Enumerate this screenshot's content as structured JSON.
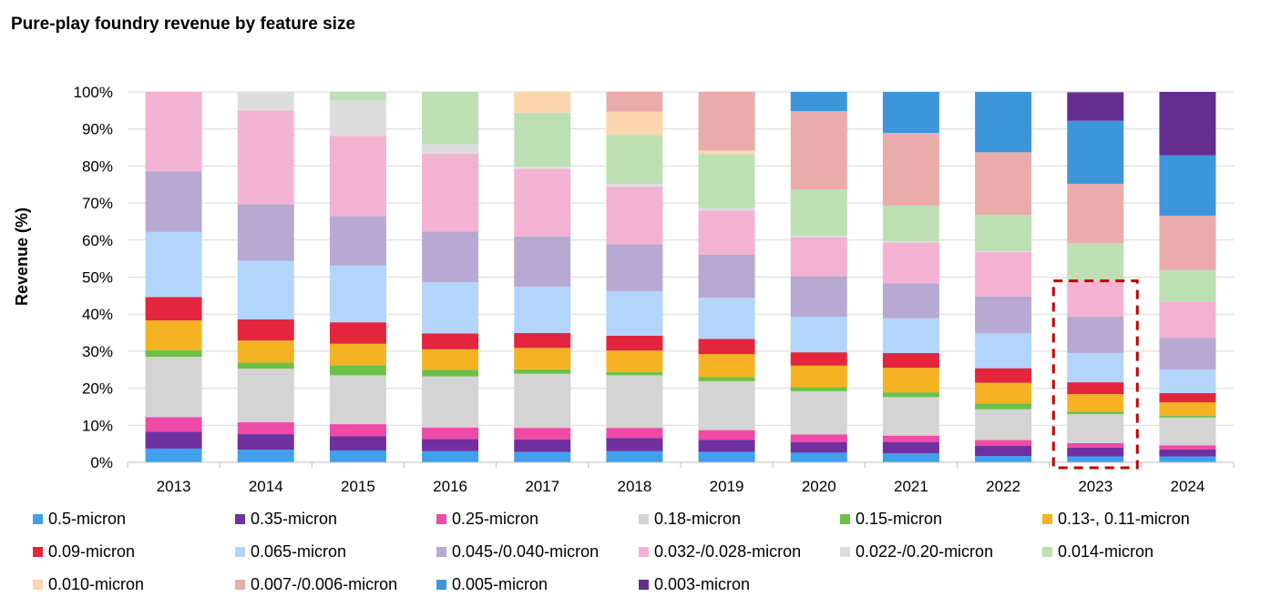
{
  "chart_data": {
    "type": "bar",
    "stacked": true,
    "percent": true,
    "title": "Pure-play foundry revenue by feature size",
    "ylabel": "Revenue (%)",
    "xlabel": "",
    "ylim": [
      0,
      100
    ],
    "yticks": [
      "0%",
      "10%",
      "20%",
      "30%",
      "40%",
      "50%",
      "60%",
      "70%",
      "80%",
      "90%",
      "100%"
    ],
    "grid": true,
    "legend_position": "bottom",
    "categories": [
      "2013",
      "2014",
      "2015",
      "2016",
      "2017",
      "2018",
      "2019",
      "2020",
      "2021",
      "2022",
      "2023",
      "2024"
    ],
    "series": [
      {
        "name": "0.5-micron",
        "color": "#3fa0ee",
        "values": [
          3.7,
          3.4,
          3.2,
          3.0,
          2.8,
          3.0,
          2.8,
          2.6,
          2.4,
          1.7,
          1.6,
          1.6
        ]
      },
      {
        "name": "0.35-micron",
        "color": "#7030a0",
        "values": [
          4.6,
          4.2,
          3.8,
          3.3,
          3.4,
          3.6,
          3.3,
          2.9,
          3.1,
          2.8,
          2.4,
          1.9
        ]
      },
      {
        "name": "0.25-micron",
        "color": "#ee4aa6",
        "values": [
          3.9,
          3.2,
          3.3,
          3.1,
          3.1,
          2.7,
          2.6,
          2.0,
          1.7,
          1.5,
          1.2,
          1.1
        ]
      },
      {
        "name": "0.18-micron",
        "color": "#d4d4d4",
        "values": [
          16.3,
          14.5,
          13.2,
          13.8,
          14.6,
          14.2,
          13.2,
          11.7,
          10.4,
          8.3,
          7.8,
          7.5
        ]
      },
      {
        "name": "0.15-micron",
        "color": "#6cc04a",
        "values": [
          1.8,
          1.6,
          2.7,
          1.8,
          1.2,
          0.9,
          1.1,
          1.1,
          1.3,
          1.6,
          0.7,
          0.5
        ]
      },
      {
        "name": "0.13-, 0.11-micron",
        "color": "#f5b324",
        "values": [
          8.0,
          6.0,
          5.8,
          5.5,
          5.8,
          5.8,
          6.2,
          5.8,
          6.6,
          5.6,
          4.7,
          3.6
        ]
      },
      {
        "name": "0.09-micron",
        "color": "#e3253e",
        "values": [
          6.3,
          5.7,
          5.8,
          4.3,
          4.0,
          4.0,
          4.1,
          3.6,
          4.0,
          3.9,
          3.2,
          2.5
        ]
      },
      {
        "name": "0.065-micron",
        "color": "#b3d5fb",
        "values": [
          17.6,
          15.8,
          15.3,
          13.8,
          12.5,
          12.0,
          11.1,
          9.6,
          9.4,
          9.4,
          7.9,
          6.3
        ]
      },
      {
        "name": "0.045-/0.040-micron",
        "color": "#b8a9d2",
        "values": [
          16.3,
          15.3,
          13.4,
          13.7,
          13.6,
          12.7,
          11.7,
          11.0,
          9.4,
          10.0,
          9.8,
          8.6
        ]
      },
      {
        "name": "0.032-/0.028-micron",
        "color": "#f4b2d2",
        "values": [
          21.5,
          25.3,
          21.6,
          21.0,
          18.2,
          15.5,
          11.9,
          10.4,
          11.0,
          12.0,
          9.8,
          9.8
        ]
      },
      {
        "name": "0.022-/0.20-micron",
        "color": "#dddddd",
        "values": [
          0,
          5.0,
          9.6,
          2.6,
          0.6,
          0.8,
          0.6,
          0.5,
          0.4,
          0.2,
          0,
          0
        ]
      },
      {
        "name": "0.014-micron",
        "color": "#bce0b4",
        "values": [
          0,
          0,
          2.3,
          14.1,
          14.6,
          13.2,
          14.6,
          12.5,
          9.6,
          9.8,
          10.1,
          8.5
        ]
      },
      {
        "name": "0.010-micron",
        "color": "#fad5ad",
        "values": [
          0,
          0,
          0,
          0,
          5.6,
          6.3,
          1.0,
          0,
          0,
          0,
          0,
          0
        ]
      },
      {
        "name": "0.007-/0.006-micron",
        "color": "#eaabab",
        "values": [
          0,
          0,
          0,
          0,
          0,
          5.3,
          15.8,
          21.1,
          19.6,
          16.9,
          16.0,
          14.7
        ]
      },
      {
        "name": "0.005-micron",
        "color": "#3e96da",
        "values": [
          0,
          0,
          0,
          0,
          0,
          0,
          0,
          5.2,
          11.1,
          16.3,
          17.0,
          16.3
        ]
      },
      {
        "name": "0.003-micron",
        "color": "#662d91",
        "values": [
          0,
          0,
          0,
          0,
          0,
          0,
          0,
          0,
          0,
          0,
          7.7,
          17.1
        ]
      }
    ],
    "highlight": {
      "category": "2023",
      "style": "dashed-box",
      "color": "#c00000"
    }
  }
}
